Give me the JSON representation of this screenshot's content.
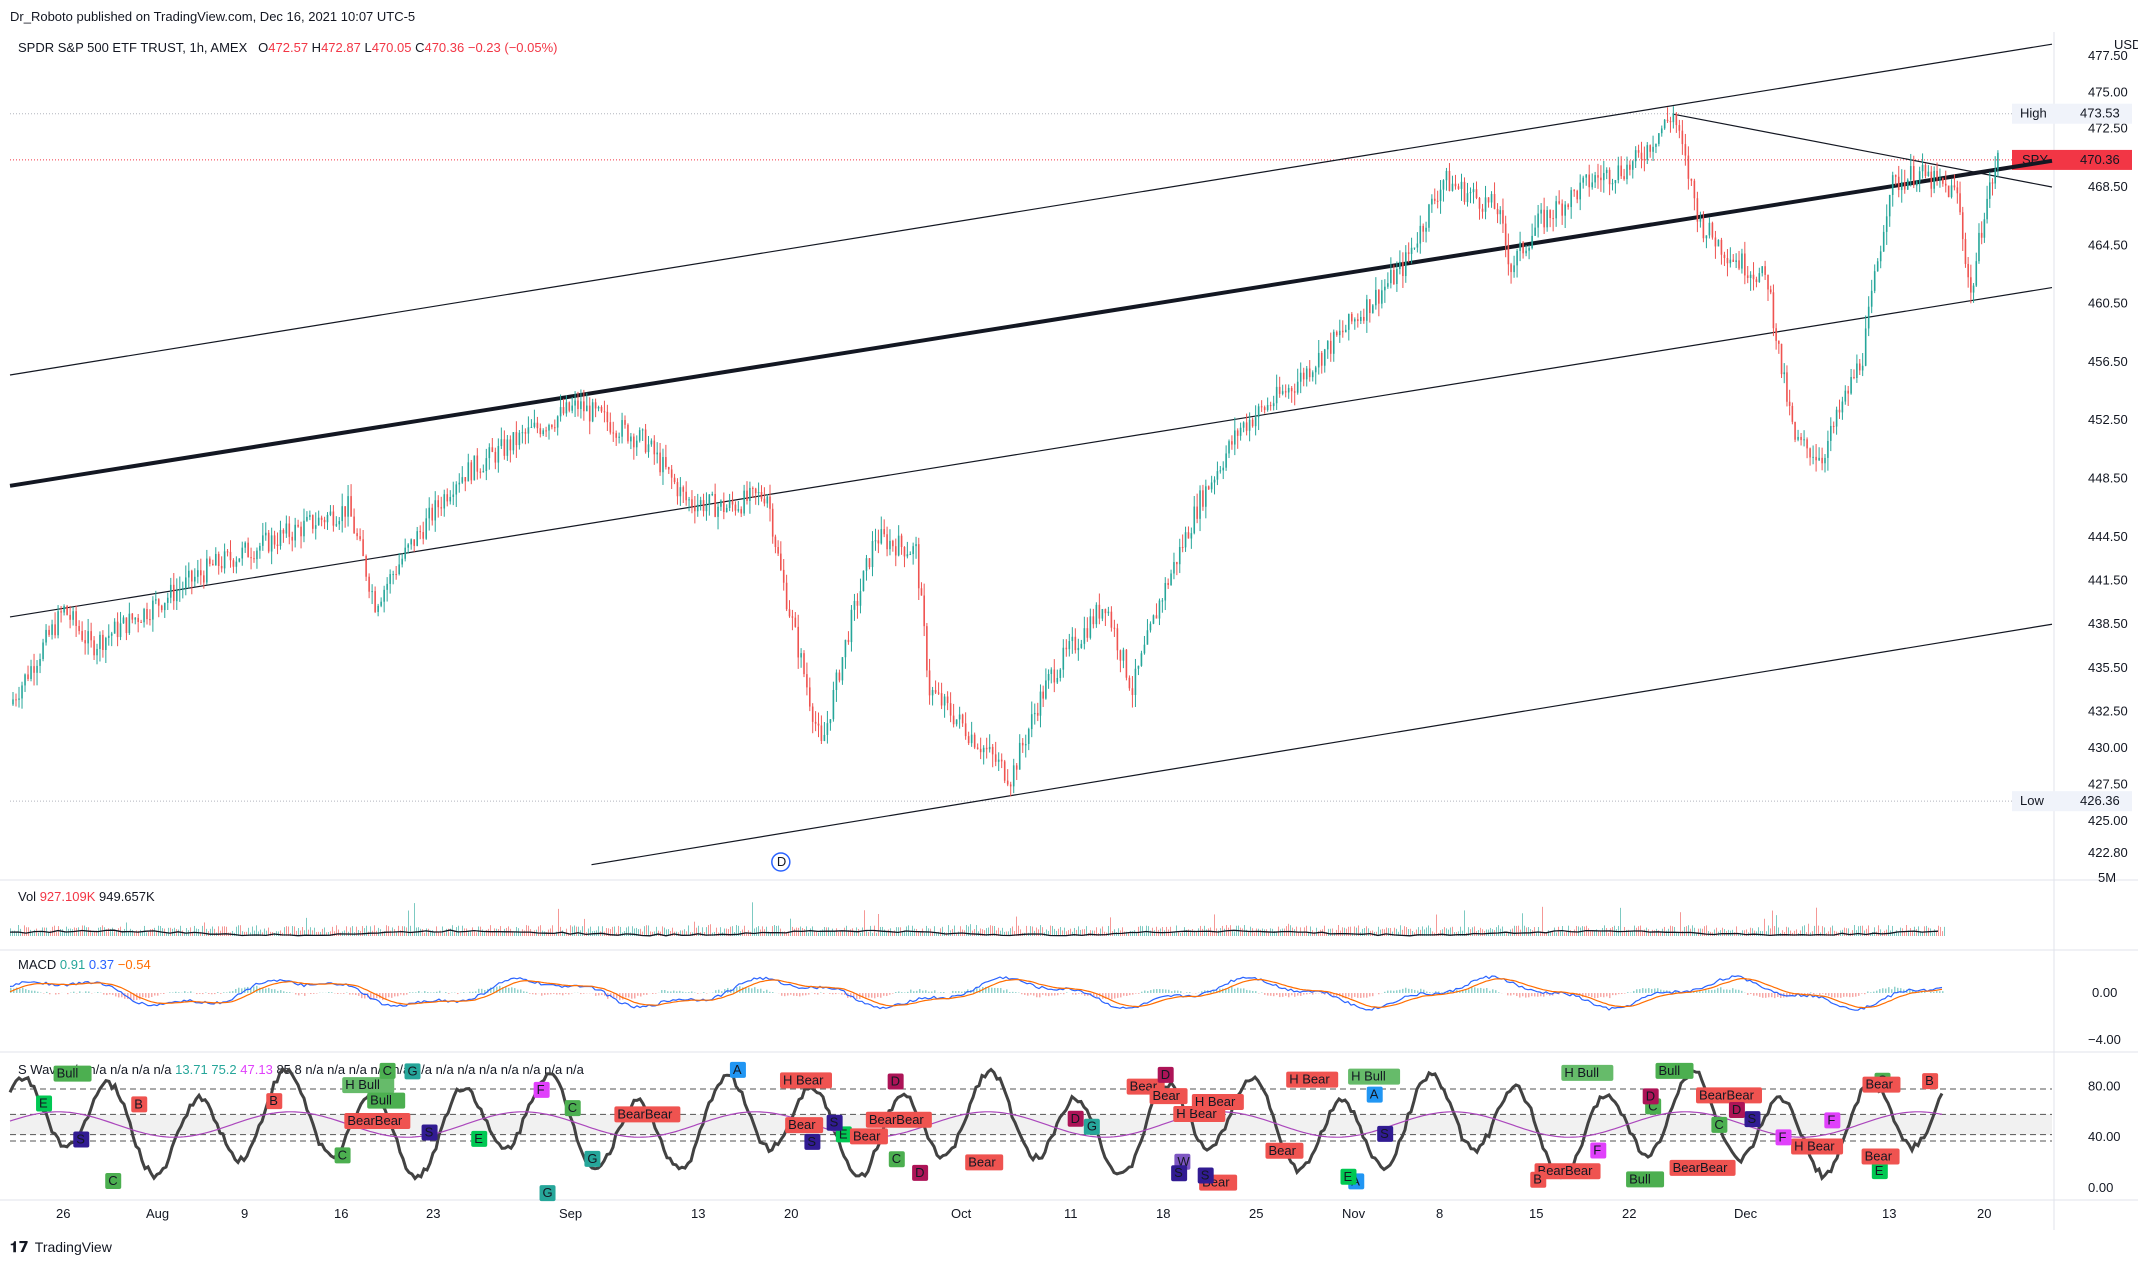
{
  "header": {
    "publisher": "Dr_Roboto published on TradingView.com, Dec 16, 2021 10:07 UTC-5"
  },
  "instrument": {
    "title": "SPDR S&P 500 ETF TRUST, 1h, AMEX",
    "o_label": "O",
    "o": "472.57",
    "h_label": "H",
    "h": "472.87",
    "l_label": "L",
    "l": "470.05",
    "c_label": "C",
    "c": "470.36",
    "change": "−0.23 (−0.05%)"
  },
  "volume_legend": {
    "name": "Vol",
    "v1": "927.109K",
    "v2": "949.657K"
  },
  "macd_legend": {
    "name": "MACD",
    "v1": "0.91",
    "v2": "0.37",
    "v3": "−0.54"
  },
  "wave_legend": {
    "name": "S Wave",
    "vals": [
      "n/a",
      "n/a",
      "n/a",
      "n/a",
      "n/a"
    ],
    "v_a": "13.71",
    "v_b": "75.2",
    "v_c": "47.13",
    "v_d": "85.8",
    "tail": [
      "n/a",
      "n/a",
      "n/a",
      "n/a",
      "n/a",
      "n/a",
      "n/a",
      "n/a",
      "n/a",
      "n/a",
      "n/a",
      "n/a",
      "n/a"
    ]
  },
  "price_axis": {
    "currency": "USD",
    "ticks": [
      "477.50",
      "475.00",
      "472.50",
      "468.50",
      "464.50",
      "460.50",
      "456.50",
      "452.50",
      "448.50",
      "444.50",
      "441.50",
      "438.50",
      "435.50",
      "432.50",
      "430.00",
      "427.50",
      "425.00",
      "422.80"
    ],
    "tick_values": [
      477.5,
      475.0,
      472.5,
      468.5,
      464.5,
      460.5,
      456.5,
      452.5,
      448.5,
      444.5,
      441.5,
      438.5,
      435.5,
      432.5,
      430.0,
      427.5,
      425.0,
      422.8
    ],
    "high_label": "High",
    "high_value": "473.53",
    "low_label": "Low",
    "low_value": "426.36",
    "last_label": "SPY",
    "last_value": "470.36"
  },
  "volume_axis": {
    "tick": "5M"
  },
  "macd_axis": {
    "ticks": [
      "0.00",
      "−4.00"
    ]
  },
  "wave_axis": {
    "ticks": [
      "80.00",
      "40.00",
      "0.00"
    ]
  },
  "time_axis": {
    "labels": [
      "26",
      "Aug",
      "9",
      "16",
      "23",
      "Sep",
      "13",
      "20",
      "Oct",
      "11",
      "18",
      "25",
      "Nov",
      "8",
      "15",
      "22",
      "Dec",
      "13",
      "20"
    ]
  },
  "dividend_marker": "D",
  "chart_data": {
    "type": "candlestick",
    "symbol": "SPY",
    "interval": "1h",
    "ylim": [
      421.5,
      479.0
    ],
    "x_labels": [
      "26",
      "Aug",
      "9",
      "16",
      "23",
      "Sep",
      "13",
      "20",
      "Oct",
      "11",
      "18",
      "25",
      "Nov",
      "8",
      "15",
      "22",
      "Dec",
      "13",
      "20"
    ],
    "price_path": [
      [
        "Jul 22",
        433.0
      ],
      [
        "Jul 26",
        439.5
      ],
      [
        "Jul 28",
        437.0
      ],
      [
        "Aug 2",
        440.0
      ],
      [
        "Aug 6",
        442.5
      ],
      [
        "Aug 11",
        444.5
      ],
      [
        "Aug 16",
        446.5
      ],
      [
        "Aug 18",
        440.0
      ],
      [
        "Aug 20",
        443.0
      ],
      [
        "Aug 24",
        448.5
      ],
      [
        "Aug 30",
        452.0
      ],
      [
        "Sep 2",
        453.5
      ],
      [
        "Sep 7",
        451.0
      ],
      [
        "Sep 10",
        447.0
      ],
      [
        "Sep 13",
        446.5
      ],
      [
        "Sep 16",
        447.5
      ],
      [
        "Sep 17",
        442.0
      ],
      [
        "Sep 20",
        430.0
      ],
      [
        "Sep 22",
        438.0
      ],
      [
        "Sep 24",
        444.5
      ],
      [
        "Sep 27",
        443.5
      ],
      [
        "Sep 28",
        434.0
      ],
      [
        "Sep 30",
        432.0
      ],
      [
        "Oct 4",
        428.0
      ],
      [
        "Oct 6",
        433.0
      ],
      [
        "Oct 7",
        435.0
      ],
      [
        "Oct 11",
        440.0
      ],
      [
        "Oct 13",
        434.0
      ],
      [
        "Oct 15",
        440.0
      ],
      [
        "Oct 18",
        447.0
      ],
      [
        "Oct 21",
        452.0
      ],
      [
        "Oct 25",
        455.0
      ],
      [
        "Oct 29",
        459.0
      ],
      [
        "Nov 2",
        463.0
      ],
      [
        "Nov 5",
        469.0
      ],
      [
        "Nov 9",
        467.0
      ],
      [
        "Nov 10",
        463.0
      ],
      [
        "Nov 12",
        466.0
      ],
      [
        "Nov 16",
        469.0
      ],
      [
        "Nov 19",
        470.0
      ],
      [
        "Nov 22",
        473.53
      ],
      [
        "Nov 24",
        466.0
      ],
      [
        "Nov 26",
        464.0
      ],
      [
        "Nov 29",
        462.0
      ],
      [
        "Nov 30",
        456.0
      ],
      [
        "Dec 1",
        451.0
      ],
      [
        "Dec 3",
        450.0
      ],
      [
        "Dec 6",
        457.0
      ],
      [
        "Dec 8",
        468.5
      ],
      [
        "Dec 10",
        469.5
      ],
      [
        "Dec 13",
        468.0
      ],
      [
        "Dec 14",
        461.0
      ],
      [
        "Dec 15",
        467.0
      ],
      [
        "Dec 16",
        470.36
      ]
    ],
    "high": 473.53,
    "low": 426.36,
    "last": 470.36,
    "trend_lines": [
      {
        "name": "upper-channel",
        "from": [
          "Jul 22",
          455.6
        ],
        "to": [
          "Dec 20",
          478.3
        ]
      },
      {
        "name": "mid-channel",
        "from": [
          "Jul 22",
          448.0
        ],
        "to": [
          "Dec 20",
          470.3
        ]
      },
      {
        "name": "lower-channel-1",
        "from": [
          "Jul 22",
          439.0
        ],
        "to": [
          "Dec 20",
          461.6
        ]
      },
      {
        "name": "lower-channel-2",
        "from": [
          "Sep 3",
          422.0
        ],
        "to": [
          "Dec 20",
          438.5
        ]
      },
      {
        "name": "descending",
        "from": [
          "Nov 22",
          473.5
        ],
        "to": [
          "Dec 20",
          468.5
        ]
      }
    ],
    "dividend": "Sep 17",
    "macd": {
      "zero_label": "0.00",
      "min_label": "−4.00"
    },
    "wave_levels": [
      80,
      40,
      0
    ],
    "wave_labels": [
      "A",
      "B",
      "C",
      "D",
      "E",
      "F",
      "G",
      "W",
      "S",
      "Bear",
      "Bull",
      "H Bear",
      "H Bull",
      "BearBear"
    ]
  }
}
